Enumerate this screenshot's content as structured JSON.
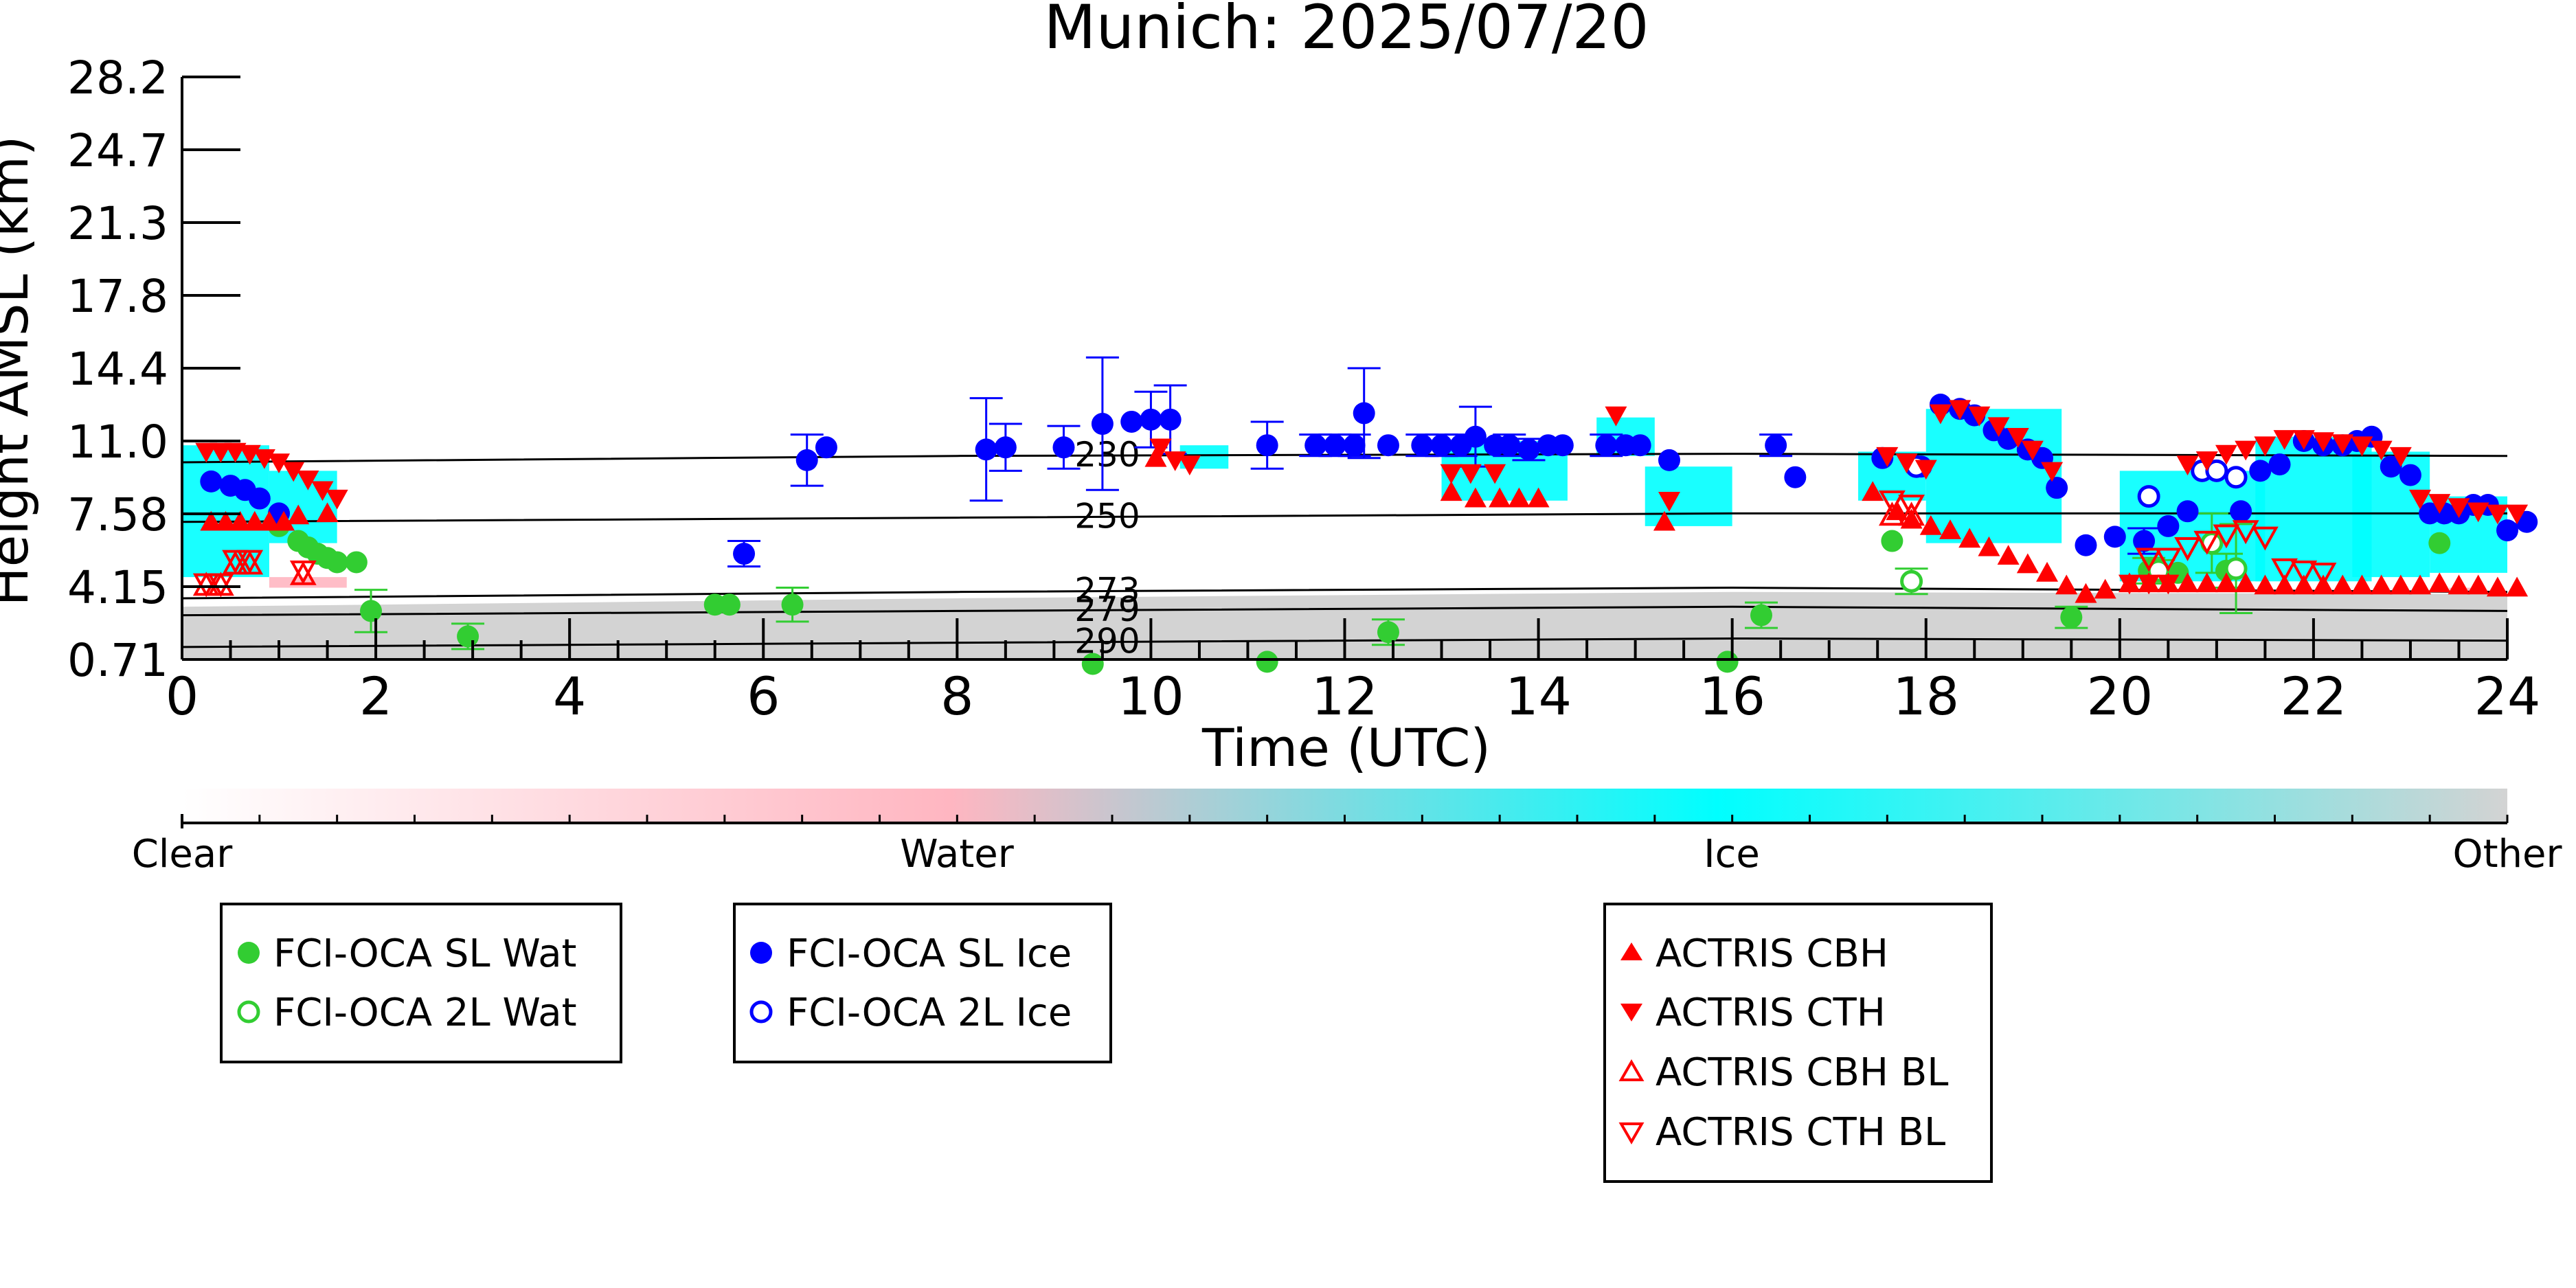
{
  "chart_data": {
    "type": "scatter",
    "title": "Munich: 2025/07/20",
    "xlabel": "Time (UTC)",
    "ylabel": "Height AMSL (km)",
    "xlim": [
      0,
      24
    ],
    "ylim": [
      0.71,
      28.2
    ],
    "x_ticks": [
      0,
      2,
      4,
      6,
      8,
      10,
      12,
      14,
      16,
      18,
      20,
      22,
      24
    ],
    "y_ticks": [
      "0.71",
      "4.15",
      "7.58",
      "11.0",
      "14.4",
      "17.8",
      "21.3",
      "24.7",
      "28.2"
    ],
    "y_tick_values": [
      0.71,
      4.15,
      7.58,
      11.0,
      14.4,
      17.8,
      21.3,
      24.7,
      28.2
    ],
    "colorbar": {
      "labels": [
        "Clear",
        "Water",
        "Ice",
        "Other"
      ],
      "colors": [
        "#ffffff",
        "#ffb6c1",
        "#00ffff",
        "#d3d3d3"
      ]
    },
    "isotherms": [
      {
        "label": "230",
        "heights": [
          [
            0,
            10.0
          ],
          [
            8,
            10.3
          ],
          [
            16,
            10.4
          ],
          [
            24,
            10.3
          ]
        ]
      },
      {
        "label": "250",
        "heights": [
          [
            0,
            7.2
          ],
          [
            8,
            7.4
          ],
          [
            16,
            7.6
          ],
          [
            24,
            7.6
          ]
        ]
      },
      {
        "label": "273",
        "heights": [
          [
            0,
            3.6
          ],
          [
            8,
            3.9
          ],
          [
            16,
            4.1
          ],
          [
            24,
            3.9
          ]
        ]
      },
      {
        "label": "279",
        "heights": [
          [
            0,
            2.8
          ],
          [
            8,
            3.0
          ],
          [
            16,
            3.2
          ],
          [
            24,
            3.0
          ]
        ]
      },
      {
        "label": "290",
        "heights": [
          [
            0,
            1.3
          ],
          [
            8,
            1.5
          ],
          [
            16,
            1.7
          ],
          [
            24,
            1.6
          ]
        ]
      }
    ],
    "series": [
      {
        "name": "FCI-OCA SL Wat",
        "color": "#32cd32",
        "marker": "circle-filled",
        "points": [
          [
            1.0,
            7.0
          ],
          [
            1.2,
            6.3
          ],
          [
            1.3,
            6.0
          ],
          [
            1.4,
            5.7
          ],
          [
            1.5,
            5.5
          ],
          [
            1.6,
            5.3
          ],
          [
            1.8,
            5.3
          ],
          [
            1.95,
            3.0
          ],
          [
            2.95,
            1.8
          ],
          [
            5.5,
            3.3
          ],
          [
            5.65,
            3.3
          ],
          [
            6.3,
            3.3
          ],
          [
            9.4,
            0.5
          ],
          [
            11.2,
            0.6
          ],
          [
            12.45,
            2.0
          ],
          [
            15.95,
            0.6
          ],
          [
            16.3,
            2.8
          ],
          [
            17.65,
            6.3
          ],
          [
            19.5,
            2.7
          ],
          [
            20.3,
            4.9
          ],
          [
            20.6,
            4.8
          ],
          [
            21.1,
            4.9
          ],
          [
            23.3,
            6.2
          ]
        ],
        "errors": [
          0,
          0,
          0,
          0,
          0,
          0,
          0,
          1.0,
          0.6,
          0,
          0,
          0.8,
          0,
          0,
          0.6,
          0,
          0.6,
          0,
          0.5,
          0.6,
          0,
          0.8,
          0
        ]
      },
      {
        "name": "FCI-OCA 2L Wat",
        "color": "#32cd32",
        "marker": "circle-open",
        "points": [
          [
            17.85,
            4.4
          ],
          [
            20.4,
            4.9
          ],
          [
            20.95,
            6.2
          ],
          [
            21.2,
            5.0
          ]
        ],
        "errors": [
          0.6,
          0.5,
          1.4,
          2.1
        ]
      },
      {
        "name": "FCI-OCA SL Ice",
        "color": "#0000ff",
        "marker": "circle-filled",
        "points": [
          [
            0.3,
            9.1
          ],
          [
            0.5,
            8.9
          ],
          [
            0.65,
            8.7
          ],
          [
            0.8,
            8.3
          ],
          [
            1.0,
            7.6
          ],
          [
            5.8,
            5.7
          ],
          [
            6.45,
            10.1
          ],
          [
            6.65,
            10.7
          ],
          [
            8.3,
            10.6
          ],
          [
            8.5,
            10.7
          ],
          [
            9.1,
            10.7
          ],
          [
            9.5,
            11.8
          ],
          [
            9.8,
            11.9
          ],
          [
            10.0,
            12.0
          ],
          [
            10.2,
            12.0
          ],
          [
            11.2,
            10.8
          ],
          [
            11.7,
            10.8
          ],
          [
            11.9,
            10.8
          ],
          [
            12.1,
            10.8
          ],
          [
            12.2,
            12.3
          ],
          [
            12.45,
            10.8
          ],
          [
            12.8,
            10.8
          ],
          [
            13.0,
            10.8
          ],
          [
            13.2,
            10.8
          ],
          [
            13.35,
            11.2
          ],
          [
            13.55,
            10.8
          ],
          [
            13.7,
            10.8
          ],
          [
            13.9,
            10.6
          ],
          [
            14.1,
            10.8
          ],
          [
            14.25,
            10.8
          ],
          [
            14.7,
            10.8
          ],
          [
            14.9,
            10.8
          ],
          [
            15.05,
            10.8
          ],
          [
            15.35,
            10.1
          ],
          [
            16.45,
            10.8
          ],
          [
            16.65,
            9.3
          ],
          [
            17.55,
            10.2
          ],
          [
            17.95,
            9.8
          ],
          [
            18.15,
            12.7
          ],
          [
            18.35,
            12.5
          ],
          [
            18.5,
            12.2
          ],
          [
            18.7,
            11.5
          ],
          [
            18.85,
            11.1
          ],
          [
            19.05,
            10.6
          ],
          [
            19.2,
            10.2
          ],
          [
            19.35,
            8.8
          ],
          [
            19.65,
            6.1
          ],
          [
            19.95,
            6.5
          ],
          [
            20.25,
            6.3
          ],
          [
            20.5,
            7.0
          ],
          [
            20.7,
            7.7
          ],
          [
            21.25,
            7.7
          ],
          [
            21.45,
            9.6
          ],
          [
            21.65,
            9.9
          ],
          [
            21.9,
            11.0
          ],
          [
            22.1,
            10.8
          ],
          [
            22.3,
            10.8
          ],
          [
            22.45,
            11.0
          ],
          [
            22.6,
            11.2
          ],
          [
            22.8,
            9.8
          ],
          [
            23.0,
            9.4
          ],
          [
            23.2,
            7.6
          ],
          [
            23.35,
            7.6
          ],
          [
            23.5,
            7.6
          ],
          [
            23.65,
            8.0
          ],
          [
            23.8,
            8.0
          ],
          [
            24.0,
            6.8
          ],
          [
            24.2,
            7.2
          ],
          [
            24.35,
            7.5
          ]
        ],
        "errors": [
          0,
          0,
          0,
          0,
          0,
          0.6,
          1.2,
          0,
          2.4,
          1.1,
          1.0,
          3.1,
          0,
          1.3,
          1.6,
          1.1,
          0.5,
          0.5,
          0.5,
          2.1,
          0,
          0.5,
          0.5,
          0.5,
          1.4,
          0,
          0.5,
          0.5,
          0,
          0,
          0.5,
          0,
          0,
          0,
          0.5,
          0,
          0,
          0,
          0,
          0,
          0,
          0,
          0,
          0,
          0,
          0,
          0,
          0,
          0.6,
          0,
          0,
          0,
          0,
          0,
          0,
          0,
          0,
          0,
          0,
          0,
          0,
          0,
          0,
          0,
          0,
          0,
          0,
          0,
          0
        ]
      },
      {
        "name": "FCI-OCA 2L Ice",
        "color": "#0000ff",
        "marker": "circle-open",
        "points": [
          [
            17.9,
            9.8
          ],
          [
            20.3,
            8.4
          ],
          [
            20.85,
            9.6
          ],
          [
            21.0,
            9.6
          ],
          [
            21.2,
            9.3
          ]
        ],
        "errors": [
          0,
          0,
          0,
          0,
          0
        ]
      },
      {
        "name": "ACTRIS CBH",
        "color": "#ff0000",
        "marker": "triangle-up-filled",
        "points": [
          [
            0.3,
            7.2
          ],
          [
            0.45,
            7.2
          ],
          [
            0.6,
            7.2
          ],
          [
            0.75,
            7.2
          ],
          [
            0.9,
            7.2
          ],
          [
            1.05,
            7.2
          ],
          [
            1.2,
            7.5
          ],
          [
            1.5,
            7.6
          ],
          [
            10.05,
            10.2
          ],
          [
            13.1,
            8.6
          ],
          [
            13.35,
            8.3
          ],
          [
            13.6,
            8.3
          ],
          [
            13.8,
            8.3
          ],
          [
            14.0,
            8.3
          ],
          [
            15.3,
            7.2
          ],
          [
            17.45,
            8.6
          ],
          [
            17.7,
            7.7
          ],
          [
            17.85,
            7.3
          ],
          [
            18.05,
            7.0
          ],
          [
            18.25,
            6.8
          ],
          [
            18.45,
            6.4
          ],
          [
            18.65,
            6.0
          ],
          [
            18.85,
            5.6
          ],
          [
            19.05,
            5.2
          ],
          [
            19.25,
            4.8
          ],
          [
            19.45,
            4.2
          ],
          [
            19.65,
            3.8
          ],
          [
            19.85,
            4.0
          ],
          [
            20.1,
            4.3
          ],
          [
            20.3,
            4.3
          ],
          [
            20.5,
            4.3
          ],
          [
            20.7,
            4.3
          ],
          [
            20.9,
            4.3
          ],
          [
            21.1,
            4.3
          ],
          [
            21.3,
            4.3
          ],
          [
            21.5,
            4.2
          ],
          [
            21.7,
            4.2
          ],
          [
            21.9,
            4.2
          ],
          [
            22.1,
            4.2
          ],
          [
            22.3,
            4.2
          ],
          [
            22.5,
            4.2
          ],
          [
            22.7,
            4.2
          ],
          [
            22.9,
            4.2
          ],
          [
            23.1,
            4.2
          ],
          [
            23.3,
            4.3
          ],
          [
            23.5,
            4.2
          ],
          [
            23.7,
            4.2
          ],
          [
            23.9,
            4.1
          ],
          [
            24.1,
            4.1
          ],
          [
            24.3,
            4.1
          ]
        ]
      },
      {
        "name": "ACTRIS CTH",
        "color": "#ff0000",
        "marker": "triangle-down-filled",
        "points": [
          [
            0.25,
            10.5
          ],
          [
            0.4,
            10.5
          ],
          [
            0.55,
            10.5
          ],
          [
            0.7,
            10.4
          ],
          [
            0.85,
            10.2
          ],
          [
            1.0,
            10.0
          ],
          [
            1.15,
            9.6
          ],
          [
            1.3,
            9.2
          ],
          [
            1.45,
            8.7
          ],
          [
            1.6,
            8.3
          ],
          [
            10.1,
            10.7
          ],
          [
            10.25,
            10.1
          ],
          [
            10.4,
            9.9
          ],
          [
            13.1,
            9.5
          ],
          [
            13.3,
            9.5
          ],
          [
            13.55,
            9.5
          ],
          [
            14.8,
            12.2
          ],
          [
            15.35,
            8.2
          ],
          [
            17.6,
            10.3
          ],
          [
            17.8,
            10.0
          ],
          [
            18.0,
            9.7
          ],
          [
            18.15,
            12.3
          ],
          [
            18.35,
            12.5
          ],
          [
            18.55,
            12.2
          ],
          [
            18.75,
            11.7
          ],
          [
            18.95,
            11.2
          ],
          [
            19.1,
            10.6
          ],
          [
            19.3,
            9.6
          ],
          [
            20.1,
            4.3
          ],
          [
            20.3,
            4.3
          ],
          [
            20.5,
            4.3
          ],
          [
            20.7,
            9.9
          ],
          [
            20.9,
            10.1
          ],
          [
            21.1,
            10.4
          ],
          [
            21.3,
            10.6
          ],
          [
            21.5,
            10.8
          ],
          [
            21.7,
            11.1
          ],
          [
            21.9,
            11.1
          ],
          [
            22.1,
            11.0
          ],
          [
            22.3,
            10.9
          ],
          [
            22.5,
            10.8
          ],
          [
            22.7,
            10.6
          ],
          [
            22.9,
            10.3
          ],
          [
            23.1,
            8.3
          ],
          [
            23.3,
            8.1
          ],
          [
            23.5,
            7.9
          ],
          [
            23.7,
            7.7
          ],
          [
            23.9,
            7.6
          ],
          [
            24.1,
            7.6
          ],
          [
            24.3,
            7.7
          ]
        ]
      },
      {
        "name": "ACTRIS CBH BL",
        "color": "#ff0000",
        "marker": "triangle-up-open",
        "points": [
          [
            0.25,
            4.2
          ],
          [
            0.4,
            4.2
          ],
          [
            0.55,
            5.2
          ],
          [
            0.7,
            5.2
          ],
          [
            1.25,
            4.7
          ],
          [
            17.65,
            7.5
          ],
          [
            17.85,
            7.5
          ]
        ]
      },
      {
        "name": "ACTRIS CTH BL",
        "color": "#ff0000",
        "marker": "triangle-down-open",
        "points": [
          [
            0.25,
            4.3
          ],
          [
            0.4,
            4.3
          ],
          [
            0.55,
            5.4
          ],
          [
            0.7,
            5.4
          ],
          [
            1.25,
            4.9
          ],
          [
            17.65,
            8.2
          ],
          [
            17.85,
            8.0
          ],
          [
            20.3,
            5.5
          ],
          [
            20.5,
            5.5
          ],
          [
            20.7,
            6.0
          ],
          [
            20.9,
            6.3
          ],
          [
            21.1,
            6.6
          ],
          [
            21.3,
            6.8
          ],
          [
            21.5,
            6.5
          ],
          [
            21.7,
            5.0
          ],
          [
            21.9,
            4.9
          ],
          [
            22.1,
            4.8
          ]
        ]
      }
    ],
    "legend": {
      "groups": [
        [
          "FCI-OCA SL Wat",
          "FCI-OCA 2L Wat"
        ],
        [
          "FCI-OCA SL Ice",
          "FCI-OCA 2L Ice"
        ],
        [
          "ACTRIS CBH",
          "ACTRIS CTH",
          "ACTRIS CBH BL",
          "ACTRIS CTH BL"
        ]
      ],
      "placement": "bottom"
    }
  }
}
